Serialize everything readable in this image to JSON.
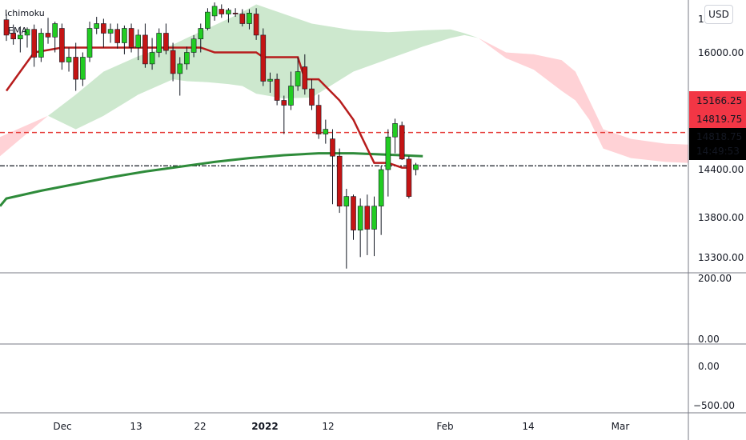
{
  "legend": {
    "indicator_1": "Ichimoku",
    "indicator_2": "EMA"
  },
  "currency": "USD",
  "colors": {
    "up": "#22cc22",
    "down": "#c41414",
    "kijun": "#b71c1c",
    "ema": "#2e8b3a",
    "cloud_bull": "#c8e6c9",
    "cloud_bear": "#ffcdd2",
    "line_red": "#e53935",
    "line_dark": "#131722",
    "badge_red": "#f23645",
    "badge_dark": "#000000"
  },
  "axis": {
    "price_ticks": [
      "16000.00",
      "15166.25",
      "14819.75",
      "14400.00",
      "13800.00",
      "13300.00"
    ],
    "top_partial": "16",
    "panel2_ticks": [
      "200.00",
      "0.00"
    ],
    "panel3_ticks": [
      "0.00",
      "−500.00"
    ],
    "x_ticks": [
      {
        "label": "Dec",
        "bold": false
      },
      {
        "label": "13",
        "bold": false
      },
      {
        "label": "22",
        "bold": false
      },
      {
        "label": "2022",
        "bold": true
      },
      {
        "label": "12",
        "bold": false
      },
      {
        "label": "Feb",
        "bold": false
      },
      {
        "label": "14",
        "bold": false
      },
      {
        "label": "Mar",
        "bold": false
      }
    ]
  },
  "badges": {
    "upper": "15166.25",
    "middle": "14819.75",
    "last_price": "14818.75",
    "countdown": "14:49:53"
  },
  "chart_data": {
    "type": "candlestick",
    "ylim": [
      13060,
      16400
    ],
    "reference_lines": [
      15166.25,
      14819.75
    ],
    "candles": [
      [
        16340,
        16400,
        16120,
        16180
      ],
      [
        16200,
        16290,
        16080,
        16140
      ],
      [
        16140,
        16270,
        16000,
        16180
      ],
      [
        16180,
        16260,
        16050,
        16240
      ],
      [
        16240,
        16290,
        15850,
        15950
      ],
      [
        15950,
        16250,
        15900,
        16200
      ],
      [
        16200,
        16360,
        16090,
        16160
      ],
      [
        16160,
        16320,
        16000,
        16300
      ],
      [
        16250,
        16300,
        15820,
        15900
      ],
      [
        15900,
        16050,
        15800,
        15950
      ],
      [
        15950,
        16100,
        15600,
        15720
      ],
      [
        15720,
        16000,
        15650,
        15950
      ],
      [
        15950,
        16320,
        15900,
        16250
      ],
      [
        16250,
        16370,
        16190,
        16300
      ],
      [
        16300,
        16350,
        16050,
        16200
      ],
      [
        16200,
        16300,
        16100,
        16240
      ],
      [
        16240,
        16300,
        16040,
        16100
      ],
      [
        16100,
        16280,
        15980,
        16250
      ],
      [
        16250,
        16300,
        16000,
        16050
      ],
      [
        16050,
        16240,
        15920,
        16180
      ],
      [
        16180,
        16300,
        15840,
        15880
      ],
      [
        15880,
        16150,
        15820,
        16000
      ],
      [
        16000,
        16250,
        15950,
        16200
      ],
      [
        16200,
        16300,
        15980,
        16020
      ],
      [
        16020,
        16100,
        15700,
        15780
      ],
      [
        15780,
        15950,
        15550,
        15880
      ],
      [
        15880,
        16060,
        15820,
        16000
      ],
      [
        16000,
        16180,
        15950,
        16140
      ],
      [
        16140,
        16300,
        16000,
        16250
      ],
      [
        16250,
        16460,
        16230,
        16420
      ],
      [
        16380,
        16520,
        16330,
        16480
      ],
      [
        16450,
        16500,
        16360,
        16400
      ],
      [
        16400,
        16460,
        16310,
        16440
      ],
      [
        16410,
        16460,
        16370,
        16400
      ],
      [
        16400,
        16450,
        16270,
        16300
      ],
      [
        16300,
        16450,
        16240,
        16410
      ],
      [
        16400,
        16460,
        16130,
        16180
      ],
      [
        16180,
        16250,
        15650,
        15700
      ],
      [
        15700,
        15790,
        15580,
        15720
      ],
      [
        15720,
        15780,
        15450,
        15500
      ],
      [
        15500,
        15550,
        15150,
        15450
      ],
      [
        15450,
        15800,
        15400,
        15650
      ],
      [
        15650,
        15950,
        15600,
        15800
      ],
      [
        15850,
        15980,
        15560,
        15620
      ],
      [
        15620,
        15720,
        15400,
        15450
      ],
      [
        15450,
        15560,
        15100,
        15150
      ],
      [
        15150,
        15300,
        15050,
        15200
      ],
      [
        15100,
        15200,
        14420,
        14920
      ],
      [
        14920,
        15000,
        14330,
        14400
      ],
      [
        14400,
        14580,
        13750,
        14500
      ],
      [
        14500,
        14520,
        14050,
        14150
      ],
      [
        14150,
        14480,
        13870,
        14400
      ],
      [
        14400,
        14520,
        13890,
        14160
      ],
      [
        14160,
        14500,
        13880,
        14400
      ],
      [
        14400,
        14820,
        14100,
        14780
      ],
      [
        14780,
        15200,
        14500,
        15120
      ],
      [
        15120,
        15310,
        14950,
        15260
      ],
      [
        15240,
        15280,
        14880,
        14890
      ],
      [
        14890,
        14920,
        14480,
        14500
      ],
      [
        14780,
        14850,
        14720,
        14830
      ]
    ],
    "kijun": [
      [
        0,
        15600
      ],
      [
        2,
        15800
      ],
      [
        4,
        16000
      ],
      [
        8,
        16050
      ],
      [
        12,
        16050
      ],
      [
        28,
        16050
      ],
      [
        30,
        16000
      ],
      [
        36,
        16000
      ],
      [
        37,
        15950
      ],
      [
        42,
        15950
      ],
      [
        43,
        15720
      ],
      [
        45,
        15720
      ],
      [
        48,
        15500
      ],
      [
        50,
        15300
      ],
      [
        52,
        15000
      ],
      [
        53,
        14850
      ],
      [
        55,
        14850
      ],
      [
        57,
        14800
      ],
      [
        58,
        14800
      ]
    ],
    "ema": [
      [
        -7,
        14400
      ],
      [
        0,
        14480
      ],
      [
        5,
        14560
      ],
      [
        10,
        14630
      ],
      [
        15,
        14700
      ],
      [
        20,
        14760
      ],
      [
        25,
        14810
      ],
      [
        30,
        14860
      ],
      [
        35,
        14900
      ],
      [
        40,
        14930
      ],
      [
        45,
        14950
      ],
      [
        50,
        14950
      ],
      [
        55,
        14935
      ],
      [
        60,
        14920
      ]
    ],
    "cloud_bull": {
      "upper": [
        [
          6,
          15340
        ],
        [
          10,
          15560
        ],
        [
          14,
          15800
        ],
        [
          19,
          15960
        ],
        [
          24,
          16080
        ],
        [
          26,
          16150
        ],
        [
          29,
          16250
        ],
        [
          32,
          16350
        ],
        [
          34,
          16420
        ],
        [
          36,
          16500
        ],
        [
          40,
          16400
        ],
        [
          44,
          16300
        ],
        [
          50,
          16230
        ],
        [
          55,
          16210
        ],
        [
          60,
          16230
        ],
        [
          64,
          16240
        ],
        [
          66,
          16200
        ],
        [
          68,
          16150
        ]
      ],
      "lower": [
        [
          6,
          15340
        ],
        [
          10,
          15200
        ],
        [
          14,
          15340
        ],
        [
          19,
          15560
        ],
        [
          24,
          15720
        ],
        [
          26,
          15700
        ],
        [
          29,
          15690
        ],
        [
          32,
          15670
        ],
        [
          34,
          15650
        ],
        [
          36,
          15570
        ],
        [
          40,
          15520
        ],
        [
          44,
          15530
        ],
        [
          50,
          15800
        ],
        [
          55,
          15930
        ],
        [
          60,
          16060
        ],
        [
          64,
          16150
        ],
        [
          66,
          16180
        ],
        [
          68,
          16150
        ]
      ]
    },
    "cloud_bear": {
      "upper": [
        [
          68,
          16150
        ],
        [
          72,
          16000
        ],
        [
          76,
          15980
        ],
        [
          80,
          15920
        ],
        [
          82,
          15800
        ],
        [
          84,
          15500
        ],
        [
          86,
          15200
        ],
        [
          90,
          15100
        ],
        [
          95,
          15050
        ],
        [
          100,
          15040
        ]
      ],
      "lower": [
        [
          68,
          16150
        ],
        [
          72,
          15940
        ],
        [
          76,
          15820
        ],
        [
          80,
          15600
        ],
        [
          82,
          15500
        ],
        [
          84,
          15300
        ],
        [
          86,
          15000
        ],
        [
          90,
          14900
        ],
        [
          95,
          14860
        ],
        [
          100,
          14850
        ]
      ]
    },
    "cloud_bear_left": {
      "upper": [
        [
          -7,
          15120
        ],
        [
          6,
          15340
        ]
      ],
      "lower": [
        [
          -7,
          14920
        ],
        [
          6,
          15340
        ]
      ]
    }
  }
}
